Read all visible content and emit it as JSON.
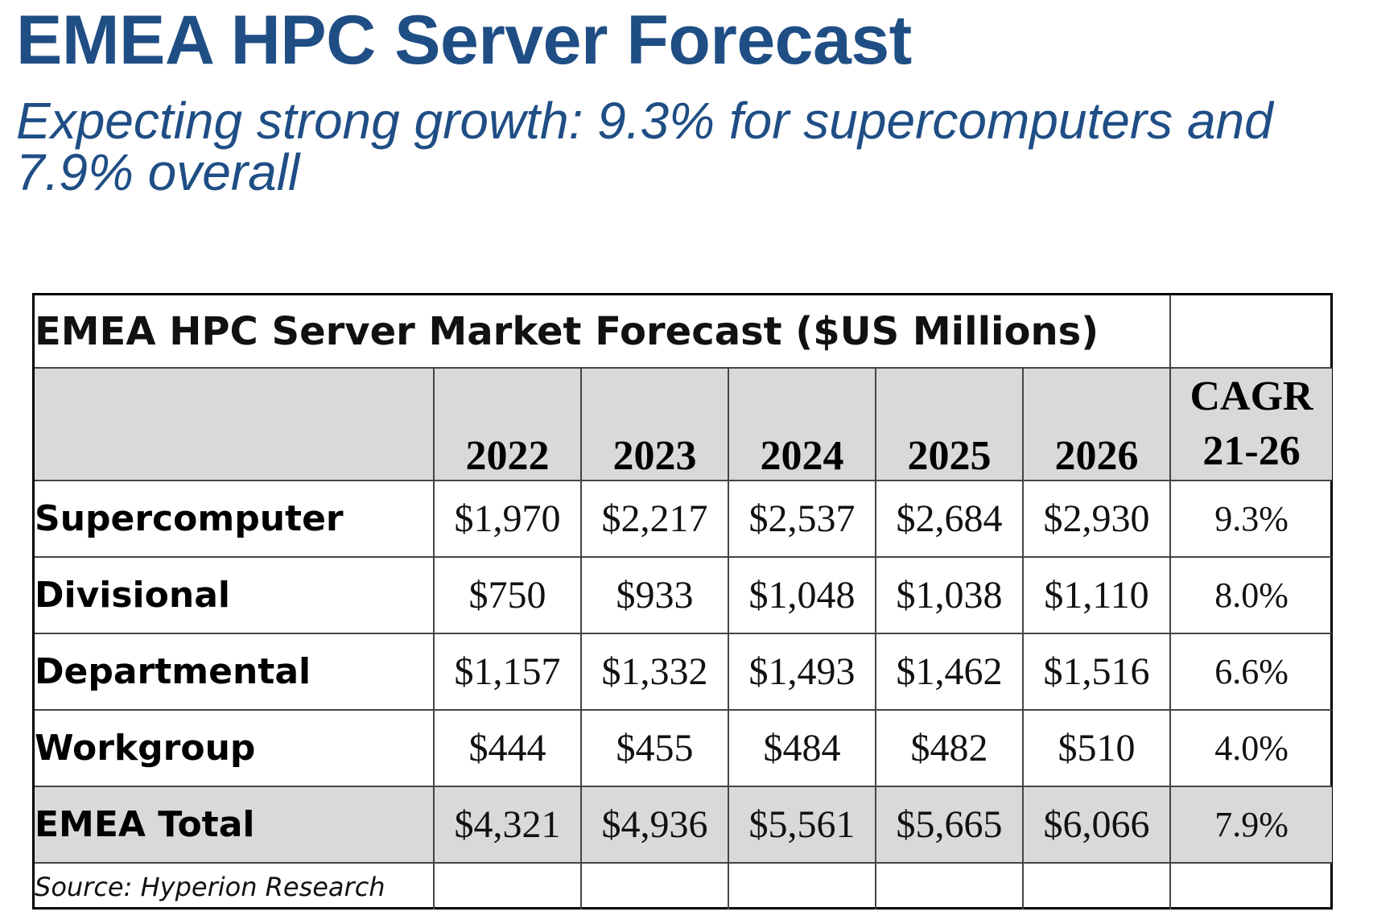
{
  "slide": {
    "title": "EMEA HPC Server Forecast",
    "subtitle": "Expecting strong growth: 9.3% for supercomputers and 7.9% overall"
  },
  "chart_data": {
    "type": "table",
    "title": "EMEA HPC Server Market Forecast ($US Millions)",
    "columns": [
      "2022",
      "2023",
      "2024",
      "2025",
      "2026"
    ],
    "cagr_header": [
      "CAGR",
      "21-26"
    ],
    "rows": [
      {
        "label": "Supercomputer",
        "values": [
          "$1,970",
          "$2,217",
          "$2,537",
          "$2,684",
          "$2,930"
        ],
        "cagr": "9.3%"
      },
      {
        "label": "Divisional",
        "values": [
          "$750",
          "$933",
          "$1,048",
          "$1,038",
          "$1,110"
        ],
        "cagr": "8.0%"
      },
      {
        "label": "Departmental",
        "values": [
          "$1,157",
          "$1,332",
          "$1,493",
          "$1,462",
          "$1,516"
        ],
        "cagr": "6.6%"
      },
      {
        "label": "Workgroup",
        "values": [
          "$444",
          "$455",
          "$484",
          "$482",
          "$510"
        ],
        "cagr": "4.0%"
      },
      {
        "label": "EMEA Total",
        "values": [
          "$4,321",
          "$4,936",
          "$5,561",
          "$5,665",
          "$6,066"
        ],
        "cagr": "7.9%"
      }
    ],
    "source": "Source: Hyperion Research",
    "colors": {
      "title_text": "#1f4e85",
      "header_fill": "#d9d9d9",
      "total_row_fill": "#d9d9d9"
    }
  }
}
